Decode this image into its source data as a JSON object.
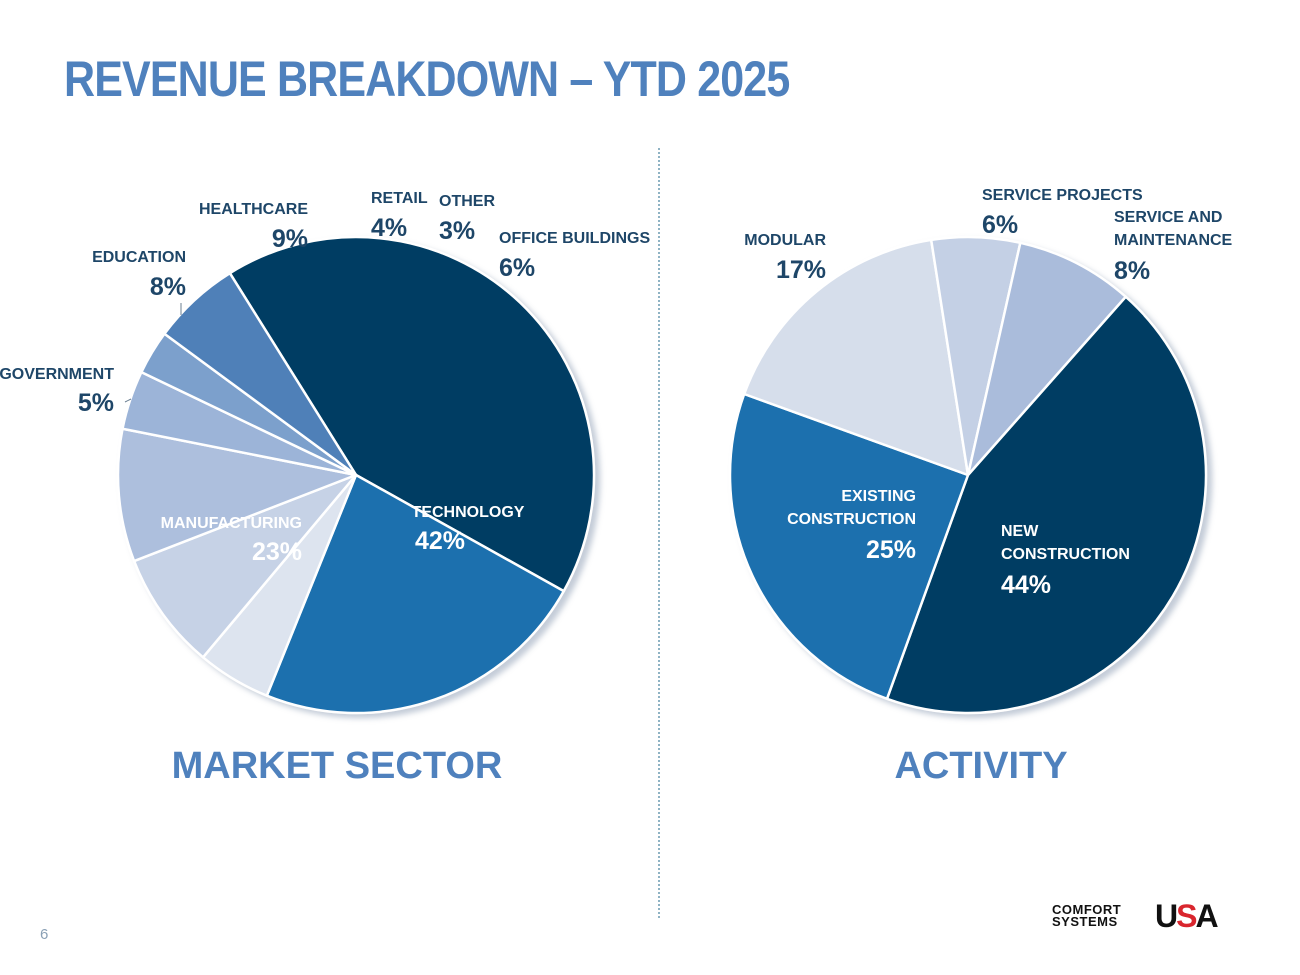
{
  "title": "REVENUE BREAKDOWN – YTD 2025",
  "page_number": "6",
  "logo": {
    "line1": "COMFORT",
    "line2": "SYSTEMS",
    "mark_u": "U",
    "mark_s": "S",
    "mark_a": "A"
  },
  "colors": {
    "title": "#4f81bd",
    "label": "#1e4668",
    "divider": "#8fb3c4"
  },
  "chart_data": [
    {
      "type": "pie",
      "title": "MARKET SECTOR",
      "units": "percent",
      "slices": [
        {
          "label": "TECHNOLOGY",
          "value": 42,
          "display": "42%",
          "color": "#003d63"
        },
        {
          "label": "MANUFACTURING",
          "value": 23,
          "display": "23%",
          "color": "#1a70ae"
        },
        {
          "label": "GOVERNMENT",
          "value": 5,
          "display": "5%",
          "color": "#dde4ef"
        },
        {
          "label": "EDUCATION",
          "value": 8,
          "display": "8%",
          "color": "#c6d2e6"
        },
        {
          "label": "HEALTHCARE",
          "value": 9,
          "display": "9%",
          "color": "#adbfdd"
        },
        {
          "label": "RETAIL",
          "value": 4,
          "display": "4%",
          "color": "#9cb4d8"
        },
        {
          "label": "OTHER",
          "value": 3,
          "display": "3%",
          "color": "#7ca0cc"
        },
        {
          "label": "OFFICE BUILDINGS",
          "value": 6,
          "display": "6%",
          "color": "#4f80b8"
        }
      ]
    },
    {
      "type": "pie",
      "title": "ACTIVITY",
      "units": "percent",
      "slices": [
        {
          "label": "NEW CONSTRUCTION",
          "value": 44,
          "display": "44%",
          "color": "#003d63"
        },
        {
          "label": "EXISTING CONSTRUCTION",
          "value": 25,
          "display": "25%",
          "color": "#1a70ae"
        },
        {
          "label": "MODULAR",
          "value": 17,
          "display": "17%",
          "color": "#d6deeb"
        },
        {
          "label": "SERVICE PROJECTS",
          "value": 6,
          "display": "6%",
          "color": "#c4d0e5"
        },
        {
          "label": "SERVICE AND MAINTENANCE",
          "value": 8,
          "display": "8%",
          "color": "#aabcdb"
        }
      ]
    }
  ]
}
